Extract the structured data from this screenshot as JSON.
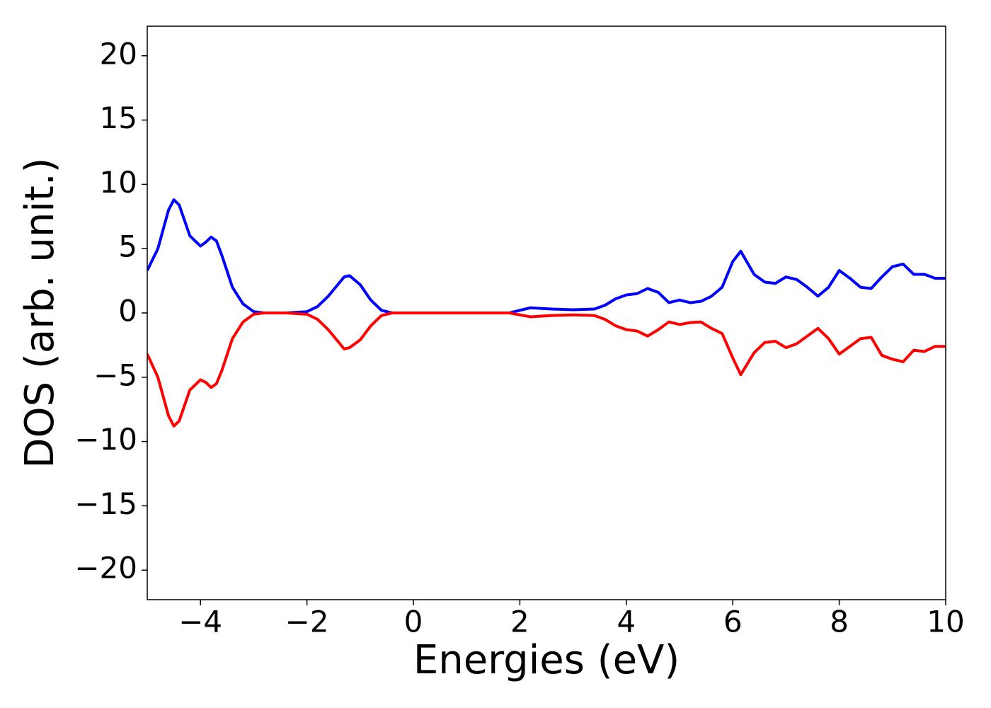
{
  "chart_data": {
    "type": "line",
    "xlabel": "Energies (eV)",
    "ylabel": "DOS (arb. unit.)",
    "x": [
      -5,
      -4.8,
      -4.6,
      -4.5,
      -4.4,
      -4.2,
      -4.0,
      -3.9,
      -3.8,
      -3.7,
      -3.6,
      -3.4,
      -3.2,
      -3.0,
      -2.8,
      -2.4,
      -2.0,
      -1.8,
      -1.6,
      -1.4,
      -1.3,
      -1.2,
      -1.0,
      -0.8,
      -0.6,
      -0.4,
      0,
      1.0,
      1.8,
      2.0,
      2.2,
      2.6,
      3.0,
      3.4,
      3.6,
      3.8,
      4.0,
      4.2,
      4.4,
      4.6,
      4.8,
      5.0,
      5.2,
      5.4,
      5.6,
      5.8,
      6.0,
      6.15,
      6.4,
      6.6,
      6.8,
      7.0,
      7.2,
      7.4,
      7.6,
      7.8,
      8.0,
      8.2,
      8.4,
      8.6,
      8.8,
      9.0,
      9.2,
      9.4,
      9.6,
      9.8,
      10
    ],
    "series": [
      {
        "color": "#0000ff",
        "values": [
          3.3,
          5,
          8,
          8.8,
          8.4,
          6,
          5.2,
          5.5,
          5.9,
          5.6,
          4.5,
          2,
          0.7,
          0.1,
          0,
          0,
          0.1,
          0.5,
          1.3,
          2.3,
          2.8,
          2.9,
          2.2,
          1,
          0.2,
          0,
          0,
          0,
          0,
          0.2,
          0.4,
          0.3,
          0.25,
          0.3,
          0.6,
          1.1,
          1.4,
          1.5,
          1.9,
          1.6,
          0.8,
          1.0,
          0.8,
          0.9,
          1.3,
          2,
          4,
          4.8,
          3,
          2.4,
          2.3,
          2.8,
          2.6,
          2,
          1.3,
          2,
          3.3,
          2.7,
          2,
          1.9,
          2.8,
          3.6,
          3.8,
          3,
          3,
          2.7,
          2.7
        ]
      },
      {
        "color": "#ff0000",
        "values": [
          -3.2,
          -5,
          -8,
          -8.8,
          -8.4,
          -6,
          -5.2,
          -5.4,
          -5.8,
          -5.5,
          -4.5,
          -2,
          -0.7,
          -0.1,
          0,
          0,
          -0.1,
          -0.5,
          -1.3,
          -2.3,
          -2.8,
          -2.7,
          -2.1,
          -1,
          -0.2,
          0,
          0,
          0,
          0,
          -0.15,
          -0.3,
          -0.2,
          -0.15,
          -0.2,
          -0.5,
          -1,
          -1.3,
          -1.4,
          -1.8,
          -1.3,
          -0.7,
          -0.9,
          -0.75,
          -0.7,
          -1.2,
          -1.6,
          -3.5,
          -4.8,
          -3.1,
          -2.3,
          -2.2,
          -2.7,
          -2.4,
          -1.8,
          -1.2,
          -2,
          -3.2,
          -2.6,
          -2,
          -1.9,
          -3.3,
          -3.6,
          -3.8,
          -2.9,
          -3,
          -2.6,
          -2.6
        ]
      }
    ],
    "xlim": [
      -5,
      10
    ],
    "xticks": [
      {
        "value": -4,
        "label": "−4"
      },
      {
        "value": -2,
        "label": "−2"
      },
      0,
      2,
      4,
      6,
      8,
      10
    ],
    "ylim": [
      -22.3,
      22.3
    ],
    "yticks": [
      {
        "value": -20,
        "label": "−20"
      },
      {
        "value": -15,
        "label": "−15"
      },
      {
        "value": -10,
        "label": "−10"
      },
      {
        "value": -5,
        "label": "−5"
      },
      0,
      5,
      10,
      15,
      20
    ],
    "grid": false
  }
}
